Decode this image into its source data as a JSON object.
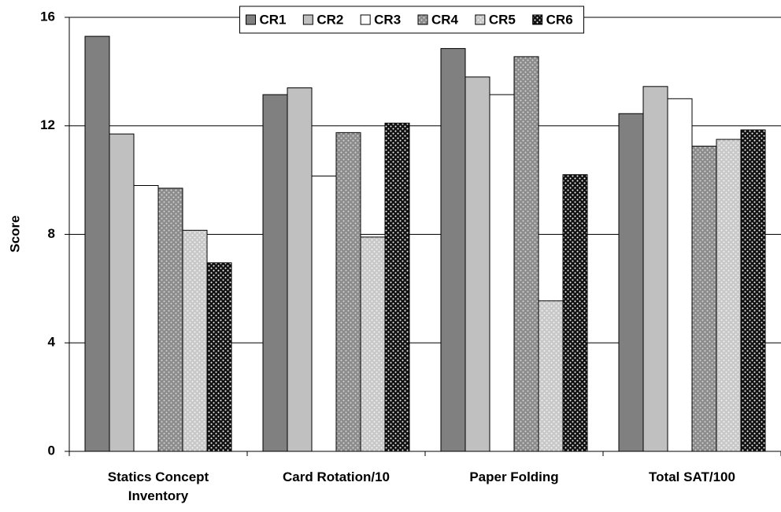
{
  "chart_data": {
    "type": "bar",
    "y_label": "Score",
    "categories": [
      "Statics Concept Inventory",
      "Card Rotation/10",
      "Paper Folding",
      "Total SAT/100"
    ],
    "series": [
      {
        "name": "CR1",
        "color": "#808080",
        "values": [
          15.3,
          13.15,
          14.85,
          12.45
        ]
      },
      {
        "name": "CR2",
        "color": "#c0c0c0",
        "values": [
          11.7,
          13.4,
          13.8,
          13.45
        ]
      },
      {
        "name": "CR3",
        "color": "#ffffff",
        "values": [
          9.8,
          10.15,
          13.15,
          13.0
        ]
      },
      {
        "name": "CR4",
        "color": "#8c8c8c",
        "dot_color": "#d8d8d8",
        "values": [
          9.7,
          11.75,
          14.55,
          11.25
        ]
      },
      {
        "name": "CR5",
        "color": "#c8c8c8",
        "dot_color": "#f4f4f4",
        "values": [
          8.15,
          7.9,
          5.55,
          11.5
        ]
      },
      {
        "name": "CR6",
        "color": "#111111",
        "dot_color": "#ffffff",
        "values": [
          6.95,
          12.1,
          10.2,
          11.85
        ]
      }
    ],
    "ylim": [
      0,
      16
    ],
    "yticks": [
      0,
      4,
      8,
      12,
      16
    ],
    "grid": true,
    "legend": "top"
  }
}
